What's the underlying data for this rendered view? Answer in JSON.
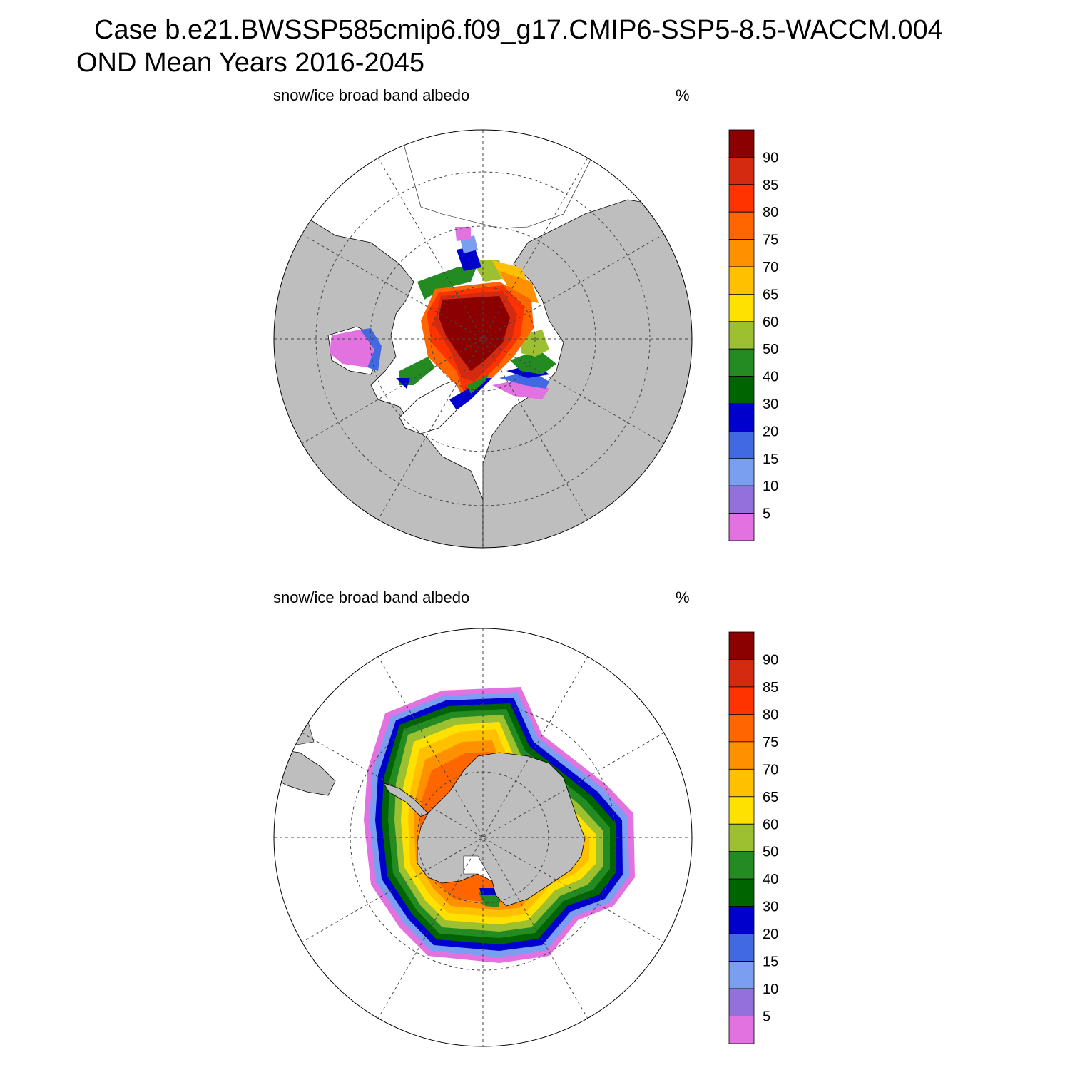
{
  "title": {
    "line1": "Case b.e21.BWSSP585cmip6.f09_g17.CMIP6-SSP5-8.5-WACCM.004",
    "line2": "OND Mean   Years 2016-2045"
  },
  "panels": [
    {
      "id": "arctic",
      "hemisphere": "north",
      "label": "snow/ice broad band albedo",
      "units": "%"
    },
    {
      "id": "antarctic",
      "hemisphere": "south",
      "label": "snow/ice broad band albedo",
      "units": "%"
    }
  ],
  "colorbar": {
    "ticks": [
      "90",
      "85",
      "80",
      "75",
      "70",
      "65",
      "60",
      "50",
      "40",
      "30",
      "20",
      "15",
      "10",
      "5"
    ],
    "colors": [
      "#8b0000",
      "#d42a10",
      "#ff3300",
      "#ff6600",
      "#ff9100",
      "#ffc000",
      "#ffe100",
      "#9dc030",
      "#238b22",
      "#006400",
      "#0000cd",
      "#4169e1",
      "#7b9ff0",
      "#9370db",
      "#e272e0"
    ]
  },
  "colors": {
    "land": "#bebebe",
    "ocean": "#ffffff",
    "grid": "#444444"
  }
}
